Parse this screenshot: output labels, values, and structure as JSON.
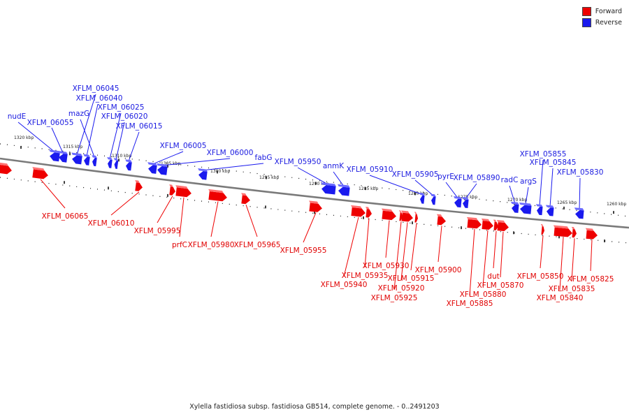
{
  "legend": [
    {
      "label": "Forward",
      "color": "#ee0000"
    },
    {
      "label": "Reverse",
      "color": "#1a1aee"
    }
  ],
  "caption": "Xylella fastidiosa subsp. fastidiosa GB514, complete genome. - 0..2491203",
  "colors": {
    "forward": "#ee0000",
    "reverse": "#1a1aee",
    "backbone": "#7a7a7a"
  },
  "scale_labels": [
    "1320 kbp",
    "1315 kbp",
    "1310 kbp",
    "1305 kbp",
    "1300 kbp",
    "1295 kbp",
    "1290 kbp",
    "1285 kbp",
    "1280 kbp",
    "1275 kbp",
    "1270 kbp",
    "1265 kbp",
    "1260 kbp"
  ],
  "genes": [
    {
      "name": "nudE",
      "strand": "reverse"
    },
    {
      "name": "XFLM_06055",
      "strand": "reverse"
    },
    {
      "name": "XFLM_06045",
      "strand": "reverse"
    },
    {
      "name": "XFLM_06040",
      "strand": "reverse"
    },
    {
      "name": "mazG",
      "strand": "reverse"
    },
    {
      "name": "XFLM_06025",
      "strand": "reverse"
    },
    {
      "name": "XFLM_06020",
      "strand": "reverse"
    },
    {
      "name": "XFLM_06015",
      "strand": "reverse"
    },
    {
      "name": "XFLM_06005",
      "strand": "reverse"
    },
    {
      "name": "XFLM_06000",
      "strand": "reverse"
    },
    {
      "name": "fabG",
      "strand": "reverse"
    },
    {
      "name": "XFLM_05950",
      "strand": "reverse"
    },
    {
      "name": "anmK",
      "strand": "reverse"
    },
    {
      "name": "XFLM_05910",
      "strand": "reverse"
    },
    {
      "name": "XFLM_05905",
      "strand": "reverse"
    },
    {
      "name": "pyrE",
      "strand": "reverse"
    },
    {
      "name": "XFLM_05890",
      "strand": "reverse"
    },
    {
      "name": "radC",
      "strand": "reverse"
    },
    {
      "name": "argS",
      "strand": "reverse"
    },
    {
      "name": "XFLM_05855",
      "strand": "reverse"
    },
    {
      "name": "XFLM_05845",
      "strand": "reverse"
    },
    {
      "name": "XFLM_05830",
      "strand": "reverse"
    },
    {
      "name": "XFLM_06065",
      "strand": "forward"
    },
    {
      "name": "XFLM_06010",
      "strand": "forward"
    },
    {
      "name": "XFLM_05995",
      "strand": "forward"
    },
    {
      "name": "prfC",
      "strand": "forward"
    },
    {
      "name": "XFLM_05980",
      "strand": "forward"
    },
    {
      "name": "XFLM_05965",
      "strand": "forward"
    },
    {
      "name": "XFLM_05955",
      "strand": "forward"
    },
    {
      "name": "XFLM_05940",
      "strand": "forward"
    },
    {
      "name": "XFLM_05935",
      "strand": "forward"
    },
    {
      "name": "XFLM_05930",
      "strand": "forward"
    },
    {
      "name": "XFLM_05925",
      "strand": "forward"
    },
    {
      "name": "XFLM_05920",
      "strand": "forward"
    },
    {
      "name": "XFLM_05915",
      "strand": "forward"
    },
    {
      "name": "XFLM_05900",
      "strand": "forward"
    },
    {
      "name": "XFLM_05885",
      "strand": "forward"
    },
    {
      "name": "XFLM_05880",
      "strand": "forward"
    },
    {
      "name": "XFLM_05870",
      "strand": "forward"
    },
    {
      "name": "dut",
      "strand": "forward"
    },
    {
      "name": "XFLM_05850",
      "strand": "forward"
    },
    {
      "name": "XFLM_05840",
      "strand": "forward"
    },
    {
      "name": "XFLM_05835",
      "strand": "forward"
    },
    {
      "name": "XFLM_05825",
      "strand": "forward"
    }
  ]
}
